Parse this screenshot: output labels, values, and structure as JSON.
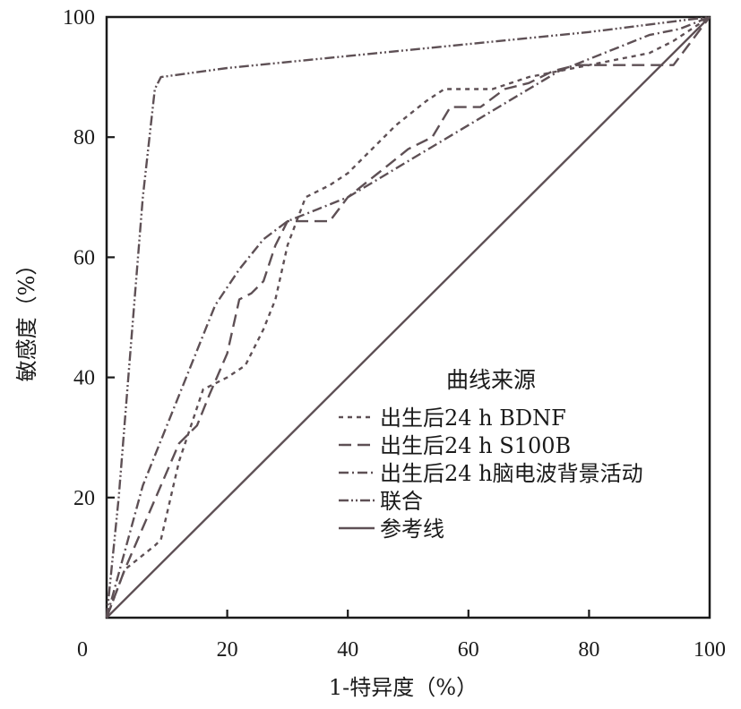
{
  "chart_data": {
    "type": "line",
    "title": "",
    "xlabel": "1-特异度（%）",
    "ylabel": "敏感度（%）",
    "xlim": [
      0,
      100
    ],
    "ylim": [
      0,
      100
    ],
    "xticks": [
      "0",
      "20",
      "40",
      "60",
      "80",
      "100"
    ],
    "yticks": [
      "20",
      "40",
      "60",
      "80",
      "100"
    ],
    "grid": false,
    "legend_title": "曲线来源",
    "legend_position": "center-right",
    "line_color": "#5e5055",
    "series": [
      {
        "name": "出生后24 h BDNF",
        "style": "short-dash",
        "x": [
          0,
          3,
          8,
          9,
          12,
          16,
          20,
          23,
          26,
          28,
          30,
          33,
          37,
          40,
          44,
          48,
          53,
          56,
          60,
          64,
          70,
          75,
          80,
          85,
          90,
          94,
          97,
          100
        ],
        "y": [
          0,
          8,
          12,
          13,
          26,
          38,
          40,
          42,
          48,
          53,
          62,
          70,
          72,
          74,
          78,
          82,
          86,
          88,
          88,
          88,
          90,
          91,
          92,
          93,
          94,
          96,
          98,
          100
        ]
      },
      {
        "name": "出生后24 h S100B",
        "style": "long-dash",
        "x": [
          0,
          3,
          6,
          9,
          12,
          15,
          17,
          20,
          22,
          24,
          26,
          28,
          30,
          33,
          37,
          40,
          45,
          50,
          54,
          57,
          62,
          66,
          70,
          74,
          78,
          82,
          86,
          90,
          94,
          100
        ],
        "y": [
          0,
          8,
          15,
          22,
          29,
          32,
          37,
          44,
          53,
          54,
          56,
          62,
          66,
          66,
          66,
          70,
          74,
          78,
          80,
          85,
          85,
          88,
          89,
          91,
          92,
          92,
          92,
          92,
          92,
          100
        ]
      },
      {
        "name": "出生后24 h脑电波背景活动",
        "style": "dash-dot",
        "x": [
          0,
          3,
          6,
          10,
          14,
          18,
          22,
          26,
          30,
          35,
          40,
          45,
          50,
          55,
          60,
          65,
          70,
          75,
          80,
          85,
          90,
          95,
          100
        ],
        "y": [
          0,
          11,
          22,
          32,
          42,
          52,
          58,
          63,
          66,
          68,
          70,
          73,
          76,
          79,
          82,
          85,
          88,
          91,
          93,
          95,
          97,
          98,
          100
        ]
      },
      {
        "name": "联合",
        "style": "dash-dot-dot",
        "x": [
          0,
          2,
          4,
          6,
          8,
          9,
          20,
          40,
          60,
          80,
          100
        ],
        "y": [
          0,
          20,
          45,
          70,
          88,
          90,
          91.5,
          93.5,
          95.5,
          97.5,
          100
        ]
      },
      {
        "name": "参考线",
        "style": "solid",
        "x": [
          0,
          100
        ],
        "y": [
          0,
          100
        ]
      }
    ]
  }
}
